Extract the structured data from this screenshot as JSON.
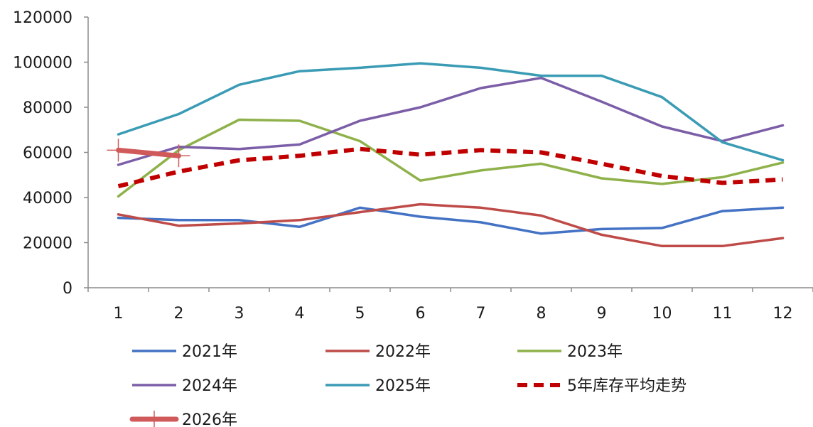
{
  "chart_data": {
    "type": "line",
    "title": "",
    "xlabel": "",
    "ylabel": "",
    "categories": [
      "1",
      "2",
      "3",
      "4",
      "5",
      "6",
      "7",
      "8",
      "9",
      "10",
      "11",
      "12"
    ],
    "ylim": [
      0,
      120000
    ],
    "yticks": [
      "0",
      "20000",
      "40000",
      "60000",
      "80000",
      "100000",
      "120000"
    ],
    "grid": false,
    "legend_position": "bottom",
    "series": [
      {
        "name": "2021年",
        "color": "#4472c4",
        "style": "solid",
        "values": [
          31000,
          30000,
          30000,
          27000,
          35500,
          31500,
          29000,
          24000,
          26000,
          26500,
          34000,
          35500
        ]
      },
      {
        "name": "2022年",
        "color": "#be4b48",
        "style": "solid",
        "values": [
          32500,
          27500,
          28500,
          30000,
          33500,
          37000,
          35500,
          32000,
          23500,
          18500,
          18500,
          22000
        ]
      },
      {
        "name": "2023年",
        "color": "#8fb14a",
        "style": "solid",
        "values": [
          40500,
          61000,
          74500,
          74000,
          65000,
          47500,
          52000,
          55000,
          48500,
          46000,
          49000,
          55500
        ]
      },
      {
        "name": "2024年",
        "color": "#7b5ea7",
        "style": "solid",
        "values": [
          54500,
          62500,
          61500,
          63500,
          74000,
          80000,
          88500,
          93000,
          82500,
          71500,
          65000,
          72000
        ]
      },
      {
        "name": "2025年",
        "color": "#3a9bb5",
        "style": "solid",
        "values": [
          68000,
          77000,
          90000,
          96000,
          97500,
          99500,
          97500,
          94000,
          94000,
          84500,
          64500,
          56500
        ]
      },
      {
        "name": "5年库存平均走势",
        "color": "#c00000",
        "style": "dashed",
        "values": [
          45000,
          51500,
          56500,
          58500,
          61500,
          59000,
          61000,
          60000,
          55000,
          49500,
          46500,
          48000
        ]
      },
      {
        "name": "2026年",
        "color": "#d05a5a",
        "style": "marker",
        "values": [
          61000,
          58500,
          null,
          null,
          null,
          null,
          null,
          null,
          null,
          null,
          null,
          null
        ]
      }
    ]
  }
}
